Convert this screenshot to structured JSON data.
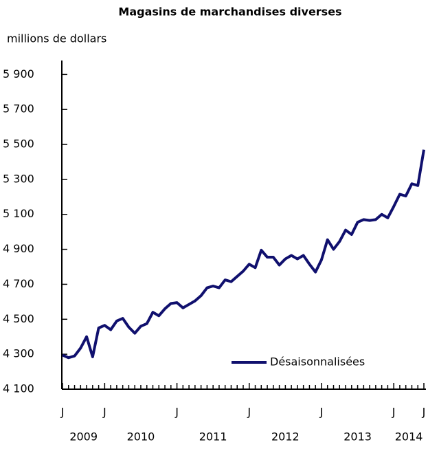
{
  "chart_data": {
    "type": "line",
    "title": "Magasins de marchandises diverses",
    "y_axis_label": "millions de dollars",
    "categories": [
      "J",
      null,
      null,
      null,
      null,
      null,
      null,
      "J",
      null,
      null,
      null,
      null,
      null,
      null,
      null,
      null,
      null,
      null,
      null,
      "J",
      null,
      null,
      null,
      null,
      null,
      null,
      null,
      null,
      null,
      null,
      null,
      "J",
      null,
      null,
      null,
      null,
      null,
      null,
      null,
      null,
      null,
      null,
      null,
      "J",
      null,
      null,
      null,
      null,
      null,
      null,
      null,
      null,
      null,
      null,
      null,
      "J",
      null,
      null,
      null,
      null,
      "J"
    ],
    "year_labels": [
      "2009",
      "2010",
      "2011",
      "2012",
      "2013",
      "2014"
    ],
    "series": [
      {
        "name": "Désaisonnalisées",
        "color": "#10106e",
        "values": [
          4295,
          4280,
          4290,
          4335,
          4400,
          4285,
          4450,
          4465,
          4440,
          4490,
          4505,
          4455,
          4420,
          4460,
          4475,
          4540,
          4520,
          4560,
          4590,
          4595,
          4565,
          4585,
          4605,
          4635,
          4680,
          4690,
          4680,
          4725,
          4715,
          4745,
          4775,
          4815,
          4795,
          4895,
          4855,
          4855,
          4810,
          4845,
          4865,
          4845,
          4865,
          4815,
          4770,
          4840,
          4955,
          4900,
          4945,
          5010,
          4985,
          5055,
          5070,
          5065,
          5070,
          5100,
          5080,
          5145,
          5215,
          5205,
          5275,
          5265,
          5470
        ]
      }
    ],
    "ylim": [
      4100,
      5980
    ],
    "yticks": [
      {
        "value": 4100,
        "label": "4 100"
      },
      {
        "value": 4300,
        "label": "4 300"
      },
      {
        "value": 4500,
        "label": "4 500"
      },
      {
        "value": 4700,
        "label": "4 700"
      },
      {
        "value": 4900,
        "label": "4 900"
      },
      {
        "value": 5100,
        "label": "5 100"
      },
      {
        "value": 5300,
        "label": "5 300"
      },
      {
        "value": 5500,
        "label": "5 500"
      },
      {
        "value": 5700,
        "label": "5 700"
      },
      {
        "value": 5900,
        "label": "5 900"
      }
    ],
    "legend": "lower right",
    "grid": false
  }
}
